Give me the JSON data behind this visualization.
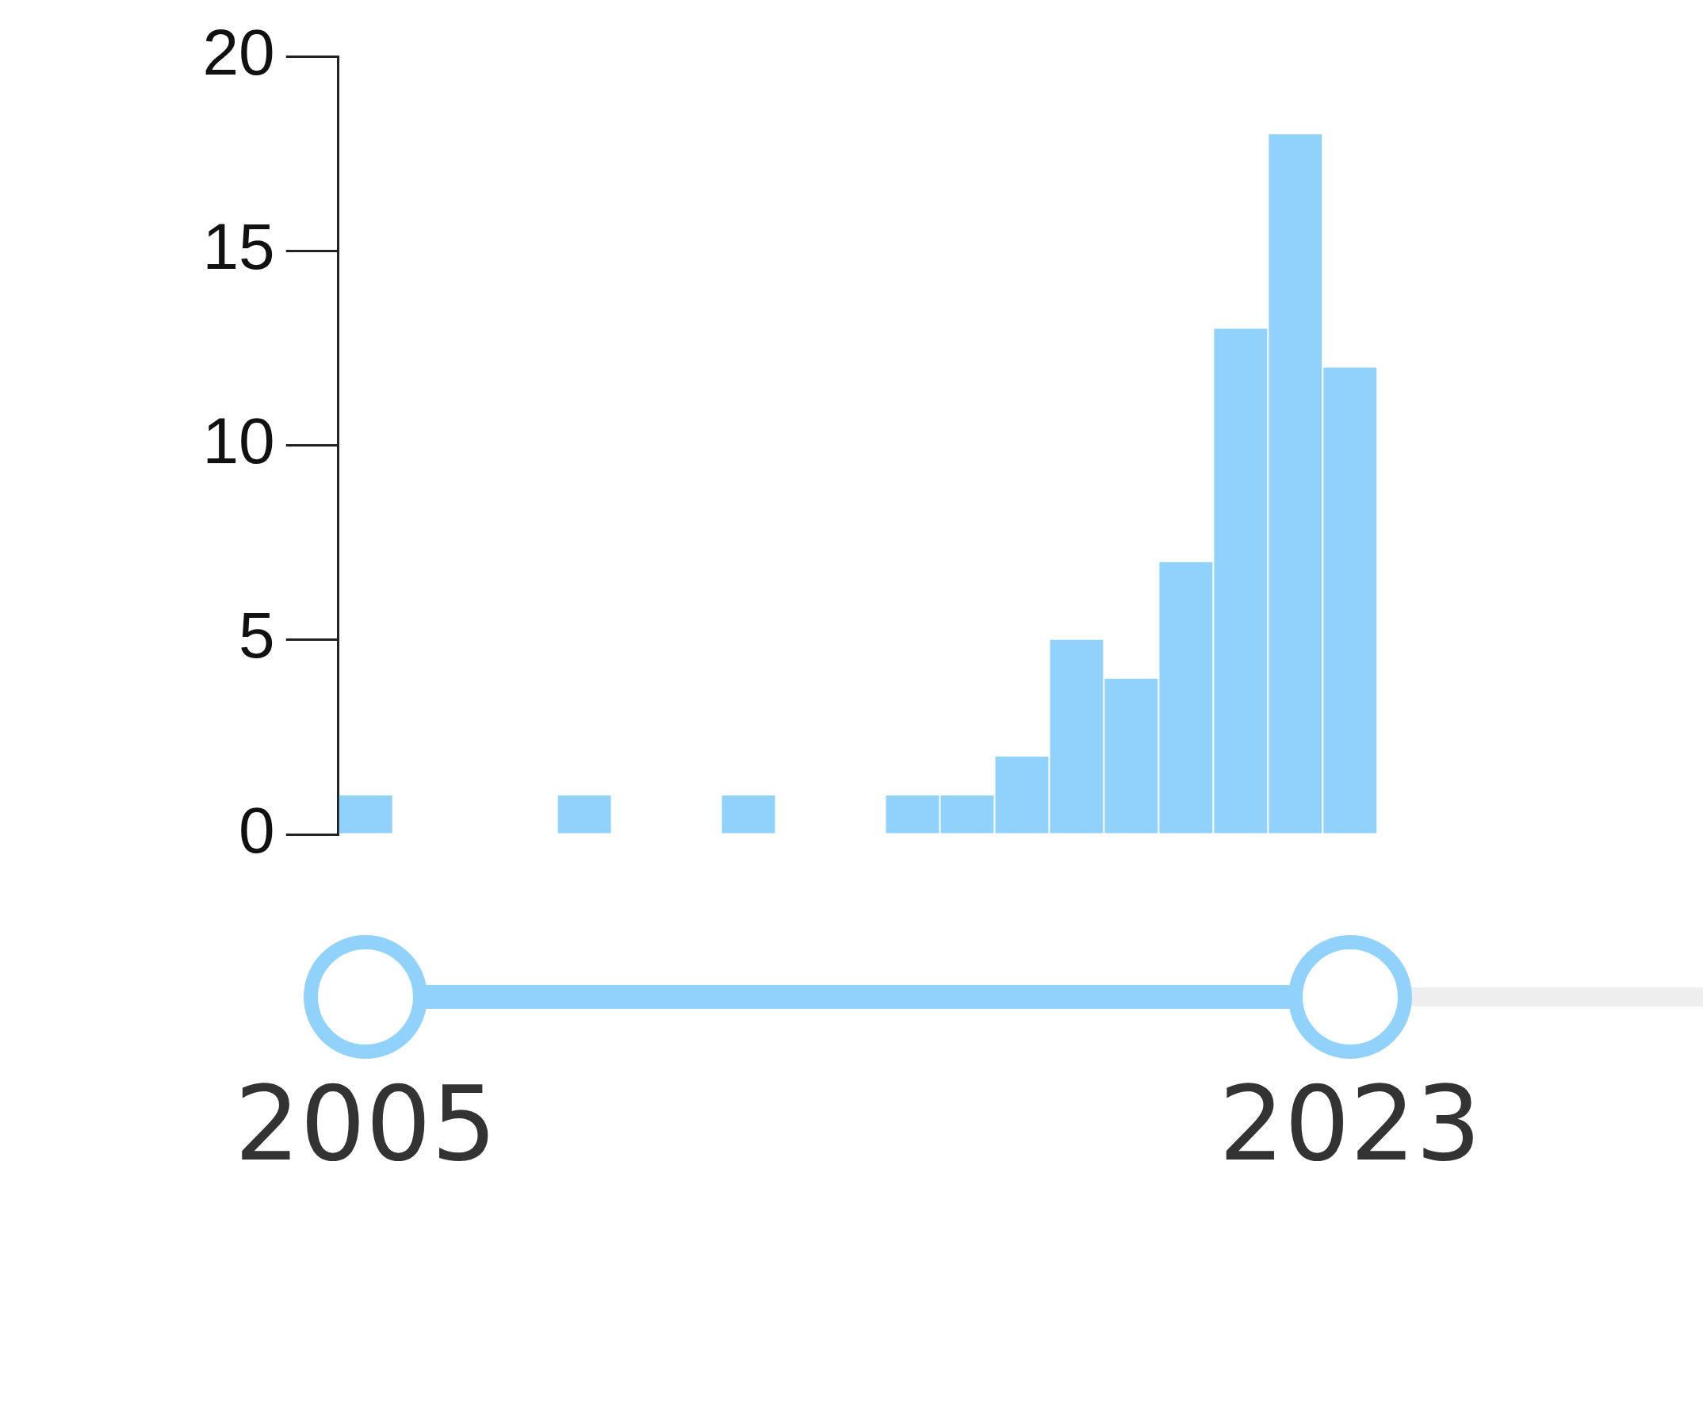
{
  "chart_data": {
    "type": "bar",
    "categories": [
      "2005",
      null,
      null,
      null,
      null,
      null,
      null,
      null,
      null,
      null,
      null,
      null,
      null,
      null,
      null,
      null,
      null,
      null,
      "2023"
    ],
    "values": [
      1,
      0,
      0,
      0,
      1,
      0,
      0,
      1,
      0,
      0,
      1,
      1,
      2,
      5,
      4,
      7,
      13,
      18,
      12
    ],
    "color": "#90d2fb",
    "ylim": [
      0,
      20
    ],
    "yticks": [
      0,
      5,
      10,
      15,
      20
    ]
  }
}
